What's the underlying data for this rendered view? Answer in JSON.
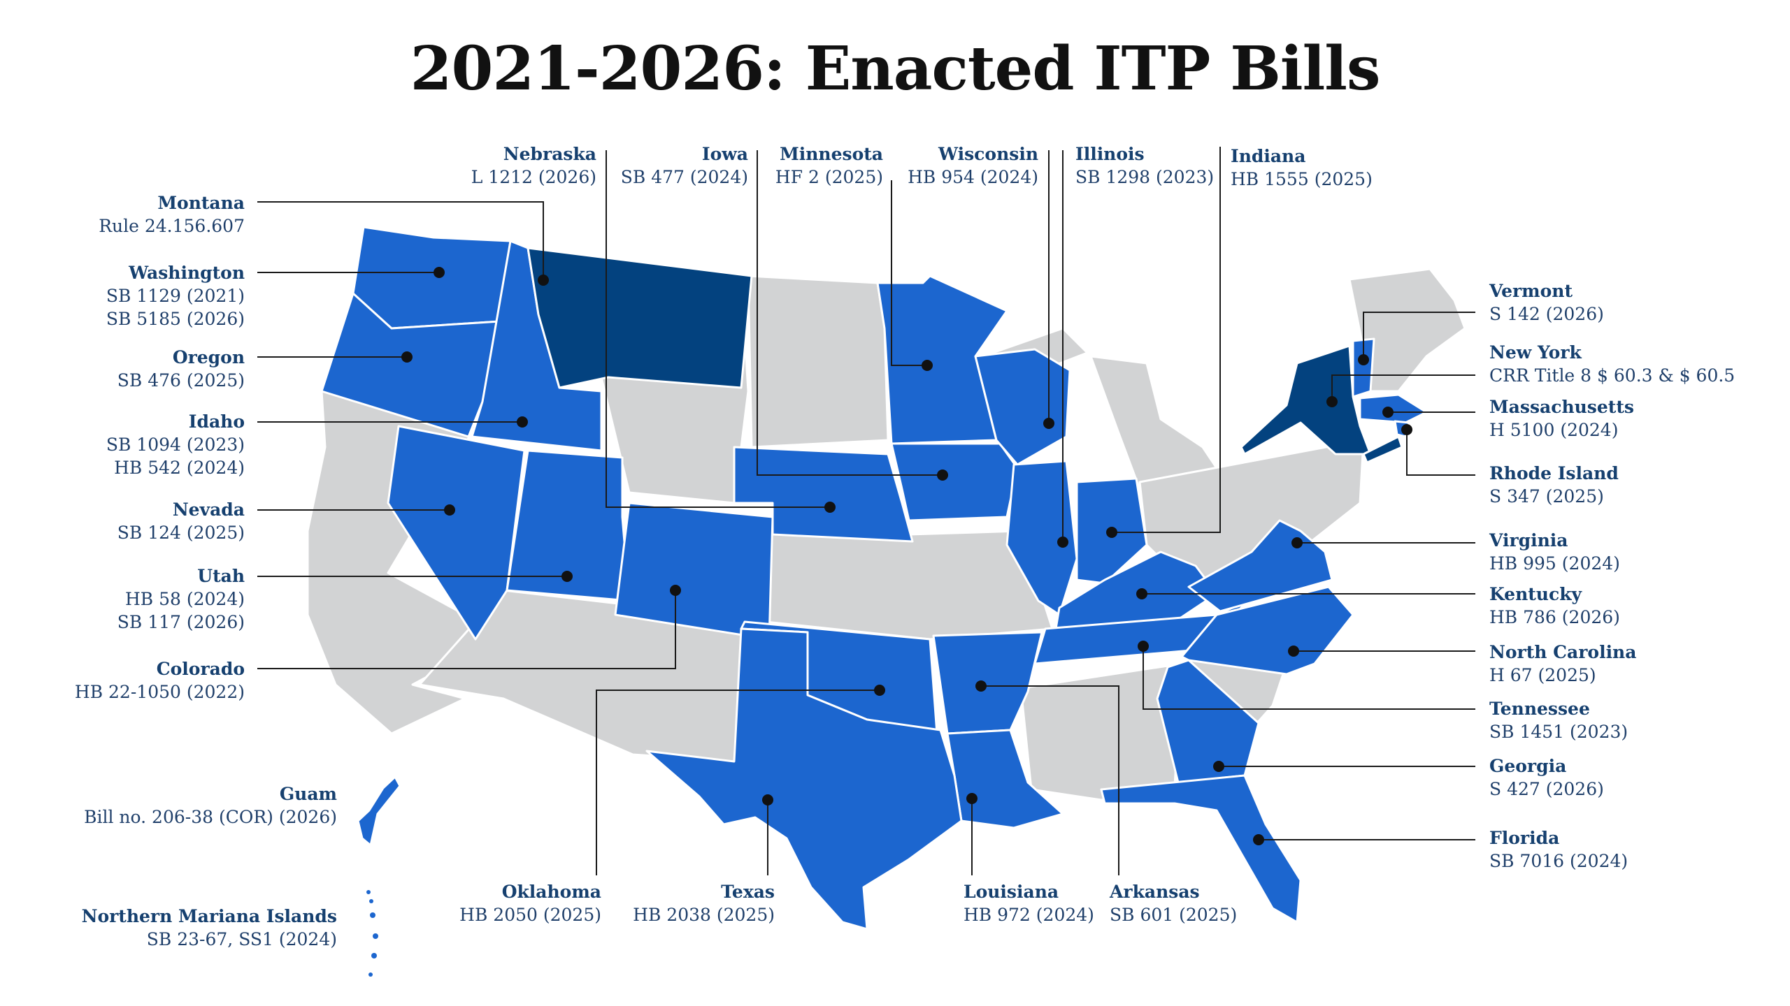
{
  "title": "2021-2026: Enacted ITP Bills",
  "colors": {
    "enacted": "#1c66cf",
    "enacted_other": "#03427f",
    "no_bill": "#d2d3d4",
    "label_text": "#16406f",
    "leader_line": "#1a1a1a"
  },
  "labels": {
    "montana": {
      "name": "Montana",
      "bills": [
        "Rule 24.156.607"
      ]
    },
    "washington": {
      "name": "Washington",
      "bills": [
        "SB 1129 (2021)",
        "SB 5185 (2026)"
      ]
    },
    "oregon": {
      "name": "Oregon",
      "bills": [
        "SB 476 (2025)"
      ]
    },
    "idaho": {
      "name": "Idaho",
      "bills": [
        "SB 1094 (2023)",
        "HB 542 (2024)"
      ]
    },
    "nevada": {
      "name": "Nevada",
      "bills": [
        "SB 124 (2025)"
      ]
    },
    "utah": {
      "name": "Utah",
      "bills": [
        "HB 58 (2024)",
        "SB 117 (2026)"
      ]
    },
    "colorado": {
      "name": "Colorado",
      "bills": [
        "HB 22-1050 (2022)"
      ]
    },
    "guam": {
      "name": "Guam",
      "bills": [
        "Bill no. 206-38 (COR) (2026)"
      ]
    },
    "nmi": {
      "name": "Northern Mariana Islands",
      "bills": [
        "SB 23-67, SS1 (2024)"
      ]
    },
    "nebraska": {
      "name": "Nebraska",
      "bills": [
        "L 1212 (2026)"
      ]
    },
    "iowa": {
      "name": "Iowa",
      "bills": [
        "SB 477 (2024)"
      ]
    },
    "minnesota": {
      "name": "Minnesota",
      "bills": [
        "HF 2 (2025)"
      ]
    },
    "wisconsin": {
      "name": "Wisconsin",
      "bills": [
        "HB 954 (2024)"
      ]
    },
    "illinois": {
      "name": "Illinois",
      "bills": [
        "SB 1298 (2023)"
      ]
    },
    "indiana": {
      "name": "Indiana",
      "bills": [
        "HB 1555 (2025)"
      ]
    },
    "vermont": {
      "name": "Vermont",
      "bills": [
        "S 142 (2026)"
      ]
    },
    "newyork": {
      "name": "New York",
      "bills": [
        "CRR Title 8 $ 60.3 & $ 60.5"
      ]
    },
    "massachusetts": {
      "name": "Massachusetts",
      "bills": [
        "H 5100 (2024)"
      ]
    },
    "rhodeisland": {
      "name": "Rhode Island",
      "bills": [
        "S 347 (2025)"
      ]
    },
    "virginia": {
      "name": "Virginia",
      "bills": [
        "HB 995 (2024)"
      ]
    },
    "kentucky": {
      "name": "Kentucky",
      "bills": [
        "HB 786 (2026)"
      ]
    },
    "northcarolina": {
      "name": "North Carolina",
      "bills": [
        "H 67 (2025)"
      ]
    },
    "tennessee": {
      "name": "Tennessee",
      "bills": [
        "SB 1451 (2023)"
      ]
    },
    "georgia": {
      "name": "Georgia",
      "bills": [
        "S 427 (2026)"
      ]
    },
    "florida": {
      "name": "Florida",
      "bills": [
        "SB 7016 (2024)"
      ]
    },
    "oklahoma": {
      "name": "Oklahoma",
      "bills": [
        "HB 2050 (2025)"
      ]
    },
    "texas": {
      "name": "Texas",
      "bills": [
        "HB 2038 (2025)"
      ]
    },
    "louisiana": {
      "name": "Louisiana",
      "bills": [
        "HB 972 (2024)"
      ]
    },
    "arkansas": {
      "name": "Arkansas",
      "bills": [
        "SB 601 (2025)"
      ]
    }
  }
}
